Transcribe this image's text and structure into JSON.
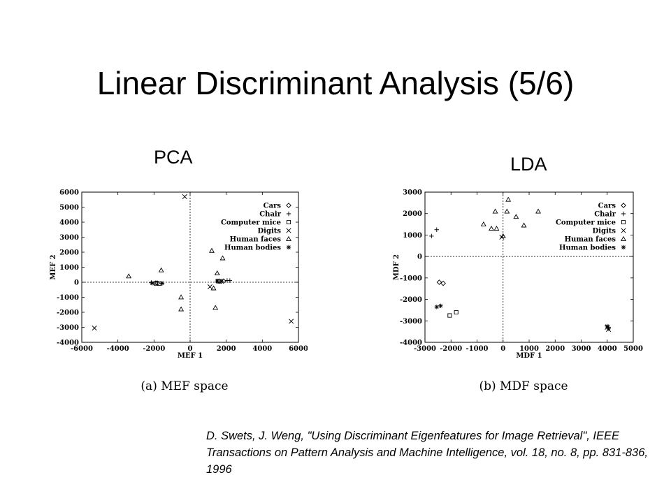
{
  "slide": {
    "title": "Linear Discriminant Analysis (5/6)",
    "pca_label": "PCA",
    "lda_label": "LDA",
    "citation": "D. Swets, J. Weng, \"Using Discriminant Eigenfeatures for Image Retrieval\", IEEE Transactions on Pattern Analysis and Machine Intelligence, vol. 18, no. 8, pp. 831-836, 1996"
  },
  "chart_data": [
    {
      "type": "scatter",
      "caption": "(a) MEF space",
      "xlabel": "MEF 1",
      "ylabel": "MEF 2",
      "xlim": [
        -6000,
        6000
      ],
      "ylim": [
        -4000,
        6000
      ],
      "xticks": [
        -6000,
        -4000,
        -2000,
        0,
        2000,
        4000,
        6000
      ],
      "yticks": [
        -4000,
        -3000,
        -2000,
        -1000,
        0,
        1000,
        2000,
        3000,
        4000,
        5000,
        6000
      ],
      "grid": false,
      "zero_lines": true,
      "legend": "top-right",
      "series": [
        {
          "name": "Cars",
          "marker": "diamond",
          "points": [
            [
              -1900,
              -50
            ],
            [
              -1800,
              -60
            ],
            [
              1600,
              80
            ],
            [
              1850,
              80
            ]
          ]
        },
        {
          "name": "Chair",
          "marker": "plus",
          "points": [
            [
              -2150,
              -20
            ],
            [
              2050,
              120
            ],
            [
              2200,
              110
            ]
          ]
        },
        {
          "name": "Computer mice",
          "marker": "square",
          "points": [
            [
              -1900,
              -80
            ],
            [
              -1700,
              -90
            ],
            [
              1550,
              70
            ],
            [
              1650,
              60
            ]
          ]
        },
        {
          "name": "Digits",
          "marker": "x",
          "points": [
            [
              -5300,
              -3050
            ],
            [
              -300,
              5700
            ],
            [
              1100,
              -300
            ],
            [
              5600,
              -2600
            ]
          ]
        },
        {
          "name": "Human faces",
          "marker": "triangle",
          "points": [
            [
              -3400,
              400
            ],
            [
              -1600,
              800
            ],
            [
              -500,
              -1000
            ],
            [
              -500,
              -1800
            ],
            [
              1200,
              2100
            ],
            [
              1800,
              1600
            ],
            [
              1500,
              600
            ],
            [
              1400,
              -1700
            ],
            [
              1300,
              -400
            ]
          ]
        },
        {
          "name": "Human bodies",
          "marker": "star",
          "points": [
            [
              -2100,
              -60
            ],
            [
              -1550,
              -70
            ],
            [
              1500,
              90
            ],
            [
              1750,
              60
            ]
          ]
        }
      ]
    },
    {
      "type": "scatter",
      "caption": "(b) MDF space",
      "xlabel": "MDF 1",
      "ylabel": "MDF 2",
      "xlim": [
        -3000,
        5000
      ],
      "ylim": [
        -4000,
        3000
      ],
      "xticks": [
        -3000,
        -2000,
        -1000,
        0,
        1000,
        2000,
        3000,
        4000,
        5000
      ],
      "yticks": [
        -4000,
        -3000,
        -2000,
        -1000,
        0,
        1000,
        2000,
        3000
      ],
      "grid": false,
      "zero_lines": true,
      "legend": "top-right",
      "series": [
        {
          "name": "Cars",
          "marker": "diamond",
          "points": [
            [
              -2450,
              -1200
            ],
            [
              -2300,
              -1250
            ]
          ]
        },
        {
          "name": "Chair",
          "marker": "plus",
          "points": [
            [
              -2750,
              950
            ],
            [
              -2550,
              1250
            ]
          ]
        },
        {
          "name": "Computer mice",
          "marker": "square",
          "points": [
            [
              -2050,
              -2750
            ],
            [
              -1800,
              -2600
            ]
          ]
        },
        {
          "name": "Digits",
          "marker": "x",
          "points": [
            [
              -50,
              900
            ],
            [
              4000,
              -3300
            ],
            [
              4050,
              -3400
            ]
          ]
        },
        {
          "name": "Human faces",
          "marker": "triangle",
          "points": [
            [
              200,
              2650
            ],
            [
              -300,
              2100
            ],
            [
              150,
              2100
            ],
            [
              500,
              1850
            ],
            [
              1350,
              2100
            ],
            [
              -750,
              1500
            ],
            [
              -450,
              1300
            ],
            [
              -250,
              1300
            ],
            [
              800,
              1450
            ],
            [
              0,
              950
            ]
          ]
        },
        {
          "name": "Human bodies",
          "marker": "star",
          "points": [
            [
              -2550,
              -2350
            ],
            [
              -2400,
              -2300
            ],
            [
              4000,
              -3250
            ],
            [
              4050,
              -3350
            ]
          ]
        }
      ]
    }
  ]
}
